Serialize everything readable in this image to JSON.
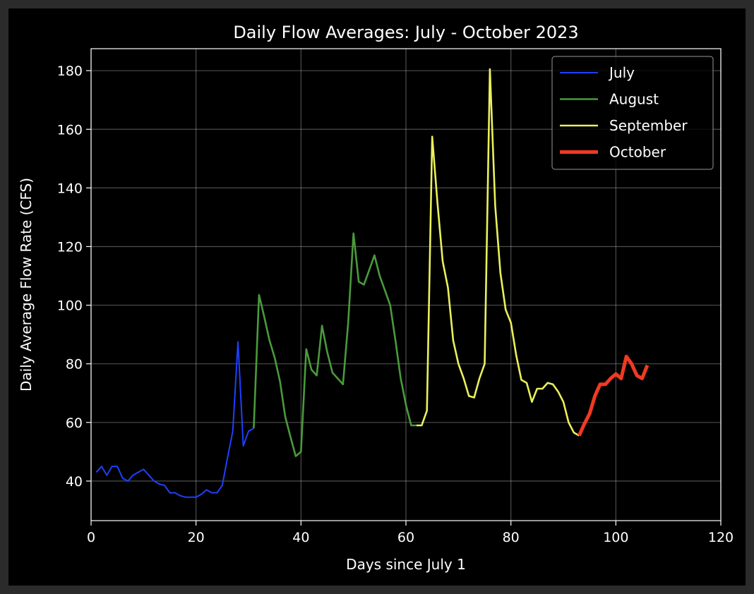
{
  "chart_data": {
    "type": "line",
    "title": "Daily Flow Averages: July - October 2023",
    "xlabel": "Days since July 1",
    "ylabel": "Daily Average Flow Rate (CFS)",
    "xlim": [
      0,
      120
    ],
    "ylim": [
      26.5,
      187.5
    ],
    "xticks": [
      0,
      20,
      40,
      60,
      80,
      100,
      120
    ],
    "yticks": [
      40,
      60,
      80,
      100,
      120,
      140,
      160,
      180
    ],
    "grid": true,
    "legend_position": "top-right",
    "series": [
      {
        "name": "July",
        "color": "#1f3fff",
        "line_width": "thin",
        "x": [
          1,
          2,
          3,
          4,
          5,
          6,
          7,
          8,
          9,
          10,
          11,
          12,
          13,
          14,
          15,
          16,
          17,
          18,
          19,
          20,
          21,
          22,
          23,
          24,
          25,
          26,
          27,
          28,
          29,
          30,
          31
        ],
        "y": [
          43,
          45,
          42,
          45,
          45,
          41,
          40,
          42,
          43,
          44,
          42,
          40,
          39,
          38.5,
          36,
          36,
          35,
          34.5,
          34.5,
          34.5,
          35.5,
          37,
          36,
          36,
          38.5,
          48,
          57,
          87.5,
          52,
          57,
          58
        ]
      },
      {
        "name": "August",
        "color": "#4a9a3c",
        "line_width": "medium",
        "x": [
          31,
          32,
          33,
          34,
          35,
          36,
          37,
          38,
          39,
          40,
          41,
          42,
          43,
          44,
          45,
          46,
          47,
          48,
          49,
          50,
          51,
          52,
          53,
          54,
          55,
          56,
          57,
          58,
          59,
          60,
          61,
          62
        ],
        "y": [
          58,
          103.5,
          96,
          88,
          82,
          74,
          62,
          55,
          48.5,
          50,
          85,
          78,
          76,
          93,
          84,
          77,
          75,
          73,
          94,
          124.5,
          108,
          107,
          112,
          117,
          110,
          105,
          100,
          88,
          75,
          66,
          59,
          59
        ]
      },
      {
        "name": "September",
        "color": "#eaf05a",
        "line_width": "medium",
        "x": [
          62,
          63,
          64,
          65,
          66,
          67,
          68,
          69,
          70,
          71,
          72,
          73,
          74,
          75,
          76,
          77,
          78,
          79,
          80,
          81,
          82,
          83,
          84,
          85,
          86,
          87,
          88,
          89,
          90,
          91,
          92,
          93
        ],
        "y": [
          59,
          59,
          64,
          157.5,
          135,
          115,
          106,
          88,
          80,
          75,
          69,
          68.5,
          75,
          80,
          180.5,
          134,
          111,
          98.5,
          94,
          83,
          74.5,
          73.5,
          67,
          71.5,
          71.5,
          73.5,
          73,
          70.5,
          67,
          60,
          56.5,
          55.5
        ]
      },
      {
        "name": "October",
        "color": "#f03a22",
        "line_width": "thick",
        "x": [
          93,
          94,
          95,
          96,
          97,
          98,
          99,
          100,
          101,
          102,
          103,
          104,
          105,
          106
        ],
        "y": [
          55.5,
          59.5,
          63,
          69,
          73,
          73,
          75,
          76.5,
          75,
          82.5,
          80,
          76,
          75,
          79.5
        ]
      }
    ]
  }
}
